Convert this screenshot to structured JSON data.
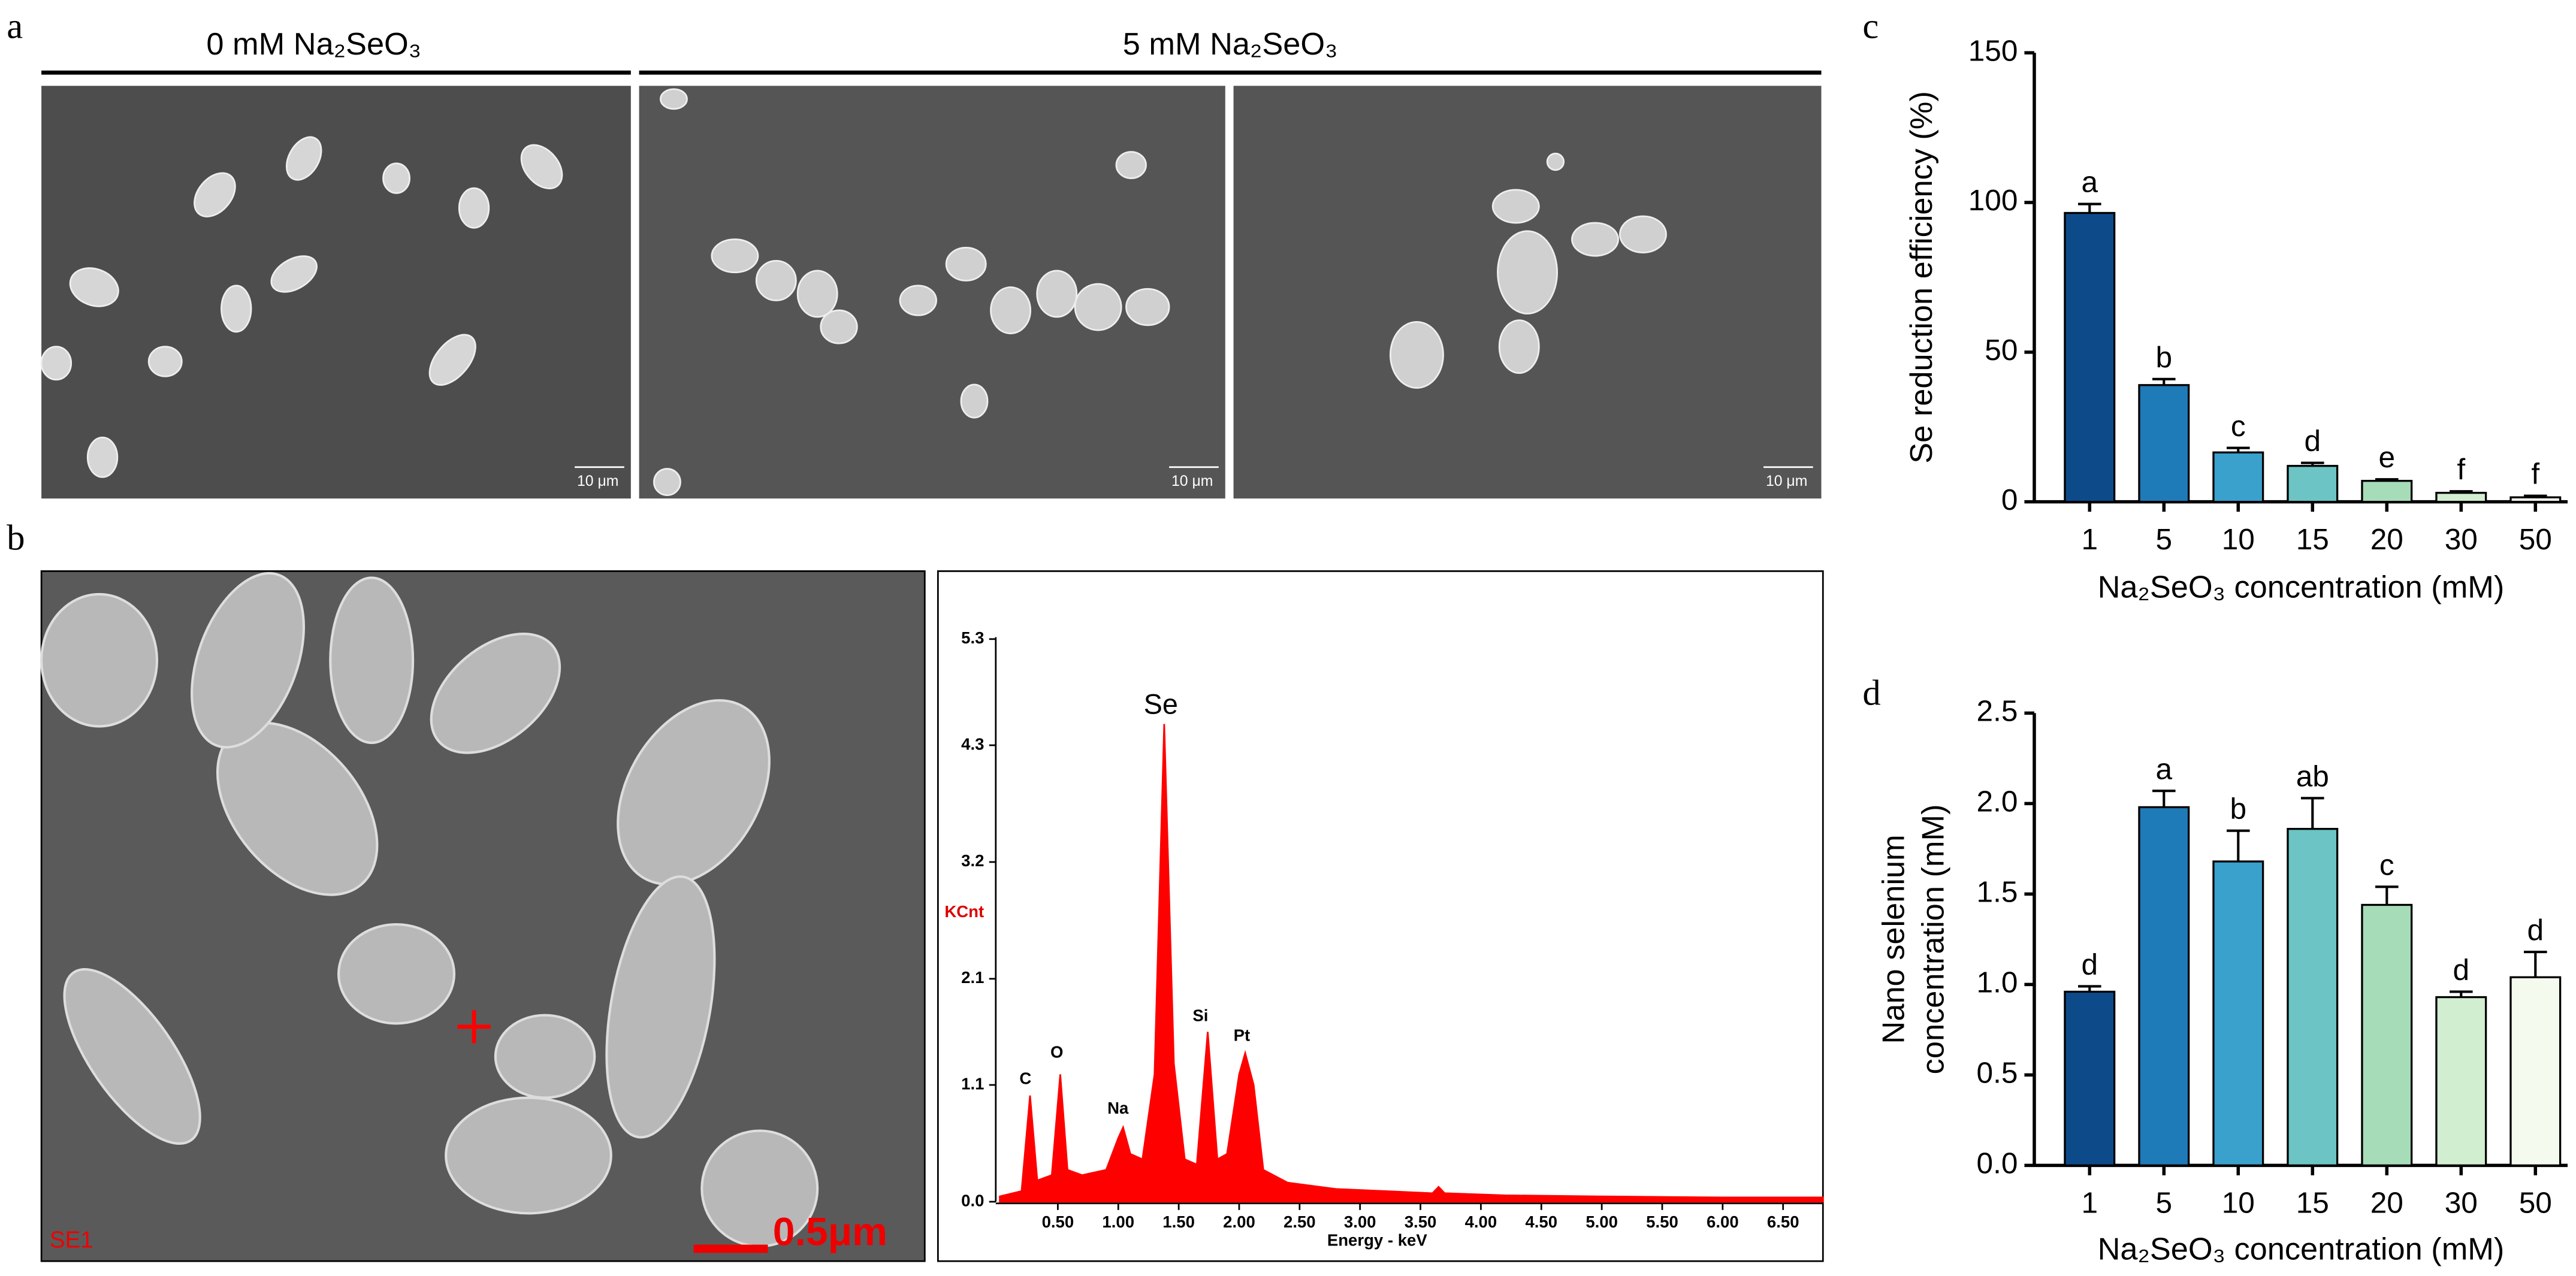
{
  "figure": {
    "panel_labels": [
      "a",
      "b",
      "c",
      "d"
    ],
    "sem_headers": [
      "0 mM Na₂SeO₃",
      "5 mM Na₂SeO₃"
    ],
    "scale_bars": [
      "10 μm",
      "10 μm",
      "10 μm"
    ],
    "sem_b_mode": "SE1",
    "sem_b_scale": "0.5μm"
  },
  "chart_data": [
    {
      "type": "area",
      "xlabel": "Energy - keV",
      "ylabel": "KCnt",
      "color": "#ff0000",
      "x": [
        0.02,
        0.2,
        0.27,
        0.33,
        0.45,
        0.52,
        0.58,
        0.7,
        0.9,
        1.0,
        1.04,
        1.1,
        1.2,
        1.3,
        1.38,
        1.46,
        1.55,
        1.65,
        1.74,
        1.82,
        1.9,
        2.0,
        2.05,
        2.12,
        2.2,
        2.4,
        2.8,
        3.2,
        3.6,
        3.65,
        3.7,
        4.2,
        5,
        6,
        6.83
      ],
      "values": [
        0.05,
        0.1,
        1.0,
        0.2,
        0.25,
        1.2,
        0.3,
        0.25,
        0.3,
        0.6,
        0.7,
        0.45,
        0.4,
        1.2,
        4.5,
        1.3,
        0.4,
        0.35,
        1.6,
        0.4,
        0.45,
        1.2,
        1.4,
        1.1,
        0.3,
        0.18,
        0.12,
        0.1,
        0.08,
        0.14,
        0.08,
        0.06,
        0.05,
        0.04,
        0.04
      ],
      "xlim": [
        0,
        6.83
      ],
      "ylim": [
        0,
        5.94
      ],
      "xticks": [
        {
          "value": 0.5,
          "label": "0.50"
        },
        {
          "value": 1,
          "label": "1.00"
        },
        {
          "value": 1.5,
          "label": "1.50"
        },
        {
          "value": 2,
          "label": "2.00"
        },
        {
          "value": 2.5,
          "label": "2.50"
        },
        {
          "value": 3,
          "label": "3.00"
        },
        {
          "value": 3.5,
          "label": "3.50"
        },
        {
          "value": 4,
          "label": "4.00"
        },
        {
          "value": 4.5,
          "label": "4.50"
        },
        {
          "value": 5,
          "label": "5.00"
        },
        {
          "value": 5.5,
          "label": "5.50"
        },
        {
          "value": 6,
          "label": "6.00"
        },
        {
          "value": 6.5,
          "label": "6.50"
        }
      ],
      "yticks": [
        {
          "value": 0,
          "label": "0.0"
        },
        1.1,
        2.1,
        3.2,
        4.3,
        5.3
      ],
      "peak_labels": [
        "C",
        "O",
        "Na",
        "Se",
        "Si",
        "Pt"
      ]
    },
    {
      "type": "bar",
      "ylabel": "Se reduction efficiency (%)",
      "xlabel": "Na₂SeO₃ concentration (mM)",
      "categories": [
        "1",
        "5",
        "10",
        "15",
        "20",
        "30",
        "50"
      ],
      "values": [
        96.5,
        39,
        16.5,
        12,
        7,
        3,
        1.5
      ],
      "errors": [
        3,
        2,
        1.5,
        1,
        0.5,
        0.5,
        0.5
      ],
      "annotations": [
        "a",
        "b",
        "c",
        "d",
        "e",
        "f",
        "f"
      ],
      "colors": [
        "#0d4a8a",
        "#1f7ab8",
        "#3aa0cc",
        "#6cc4c4",
        "#a6dcb8",
        "#d2eed0",
        "#f4faee"
      ],
      "ylim": [
        0,
        150
      ],
      "yticks": [
        0,
        50,
        100,
        150
      ]
    },
    {
      "type": "bar",
      "ylabel": [
        "Nano selenium",
        "concentration (mM)"
      ],
      "xlabel": "Na₂SeO₃ concentration (mM)",
      "categories": [
        "1",
        "5",
        "10",
        "15",
        "20",
        "30",
        "50"
      ],
      "values": [
        0.96,
        1.98,
        1.68,
        1.86,
        1.44,
        0.93,
        1.04
      ],
      "errors": [
        0.03,
        0.09,
        0.17,
        0.17,
        0.1,
        0.03,
        0.14
      ],
      "annotations": [
        "d",
        "a",
        "b",
        "ab",
        "c",
        "d",
        "d"
      ],
      "colors": [
        "#0d4a8a",
        "#1f7ab8",
        "#3aa0cc",
        "#6cc4c4",
        "#a6dcb8",
        "#d2eed0",
        "#f4faee"
      ],
      "ylim": [
        0,
        2.5
      ],
      "yticks": [
        {
          "value": 0,
          "label": "0.0"
        },
        {
          "value": 0.5,
          "label": "0.5"
        },
        {
          "value": 1,
          "label": "1.0"
        },
        {
          "value": 1.5,
          "label": "1.5"
        },
        {
          "value": 2,
          "label": "2.0"
        },
        {
          "value": 2.5,
          "label": "2.5"
        }
      ]
    }
  ]
}
